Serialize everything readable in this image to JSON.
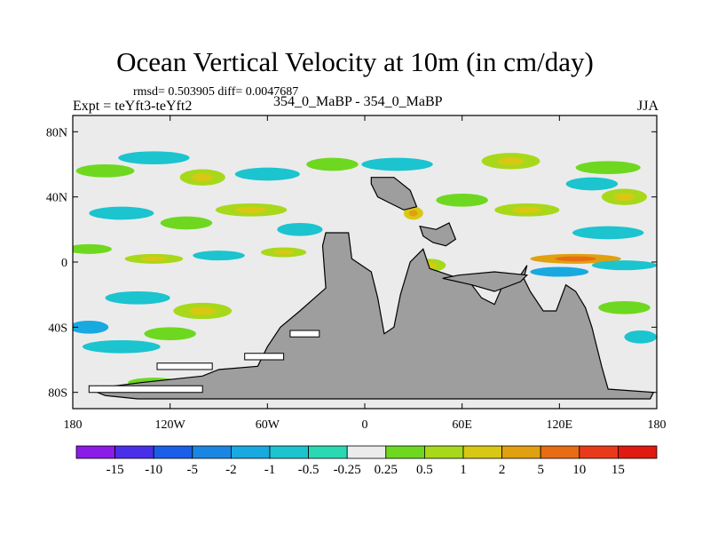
{
  "chart_data": {
    "type": "heatmap",
    "title": "Ocean Vertical Velocity at 10m (in cm/day)",
    "stats": "rmsd= 0.503905 diff= 0.0047687",
    "left_label": "Expt = teYft3-teYft2",
    "center_label": "354_0_MaBP - 354_0_MaBP",
    "right_label": "JJA",
    "x_ticks": [
      {
        "value": -180,
        "label": "180"
      },
      {
        "value": -120,
        "label": "120W"
      },
      {
        "value": -60,
        "label": "60W"
      },
      {
        "value": 0,
        "label": "0"
      },
      {
        "value": 60,
        "label": "60E"
      },
      {
        "value": 120,
        "label": "120E"
      },
      {
        "value": 180,
        "label": "180"
      }
    ],
    "y_ticks": [
      {
        "value": 80,
        "label": "80N"
      },
      {
        "value": 40,
        "label": "40N"
      },
      {
        "value": 0,
        "label": "0"
      },
      {
        "value": -40,
        "label": "40S"
      },
      {
        "value": -80,
        "label": "80S"
      }
    ],
    "xlim": [
      -180,
      180
    ],
    "ylim": [
      -90,
      90
    ],
    "colorbar": {
      "labels": [
        "-15",
        "-10",
        "-5",
        "-2",
        "-1",
        "-0.5",
        "-0.25",
        "0.25",
        "0.5",
        "1",
        "2",
        "5",
        "10",
        "15"
      ],
      "colors": [
        "#8b1ce8",
        "#4a2fe8",
        "#1a5fe8",
        "#1a86e3",
        "#18a9e0",
        "#1bc4cf",
        "#2ad9b4",
        "#ebebeb",
        "#6ed820",
        "#a8d81a",
        "#d8c814",
        "#e0a010",
        "#e86c14",
        "#e83a1a",
        "#e01a10"
      ]
    },
    "land_color": "#9e9e9e",
    "ocean_background": "#ebebeb",
    "land": [
      [
        [
          -138,
          -74
        ],
        [
          -100,
          -70
        ],
        [
          -90,
          -66
        ],
        [
          -66,
          -64
        ],
        [
          -60,
          -52
        ],
        [
          -52,
          -40
        ],
        [
          -40,
          -30
        ],
        [
          -24,
          -16
        ],
        [
          -26,
          10
        ],
        [
          -24,
          18
        ],
        [
          -10,
          18
        ],
        [
          -8,
          2
        ],
        [
          4,
          -6
        ],
        [
          8,
          -22
        ],
        [
          12,
          -44
        ],
        [
          18,
          -40
        ],
        [
          22,
          -20
        ],
        [
          28,
          0
        ],
        [
          36,
          8
        ],
        [
          40,
          -4
        ],
        [
          58,
          -10
        ],
        [
          66,
          -14
        ],
        [
          72,
          -22
        ],
        [
          80,
          -26
        ],
        [
          86,
          -12
        ],
        [
          96,
          -8
        ],
        [
          100,
          -2
        ],
        [
          98,
          -10
        ],
        [
          102,
          -18
        ],
        [
          110,
          -30
        ],
        [
          118,
          -30
        ],
        [
          124,
          -14
        ],
        [
          130,
          -18
        ],
        [
          136,
          -28
        ],
        [
          140,
          -40
        ],
        [
          146,
          -64
        ],
        [
          150,
          -78
        ],
        [
          178,
          -80
        ],
        [
          176,
          -84
        ],
        [
          -100,
          -84
        ],
        [
          -140,
          -84
        ],
        [
          -160,
          -82
        ],
        [
          -170,
          -78
        ],
        [
          -138,
          -74
        ]
      ],
      [
        [
          4,
          52
        ],
        [
          18,
          52
        ],
        [
          28,
          44
        ],
        [
          32,
          34
        ],
        [
          24,
          32
        ],
        [
          16,
          36
        ],
        [
          8,
          40
        ],
        [
          4,
          48
        ],
        [
          4,
          52
        ]
      ],
      [
        [
          34,
          22
        ],
        [
          44,
          20
        ],
        [
          52,
          24
        ],
        [
          56,
          14
        ],
        [
          50,
          10
        ],
        [
          42,
          12
        ],
        [
          36,
          16
        ],
        [
          34,
          22
        ]
      ],
      [
        [
          48,
          -10
        ],
        [
          66,
          -14
        ],
        [
          80,
          -18
        ],
        [
          96,
          -12
        ],
        [
          100,
          -8
        ],
        [
          80,
          -6
        ],
        [
          58,
          -8
        ],
        [
          48,
          -10
        ]
      ]
    ],
    "ocean_blocks": [
      [
        [
          -128,
          -66
        ],
        [
          -94,
          -66
        ],
        [
          -94,
          -62
        ],
        [
          -128,
          -62
        ],
        [
          -128,
          -66
        ]
      ],
      [
        [
          -46,
          -46
        ],
        [
          -28,
          -46
        ],
        [
          -28,
          -42
        ],
        [
          -46,
          -42
        ],
        [
          -46,
          -46
        ]
      ],
      [
        [
          -74,
          -60
        ],
        [
          -50,
          -60
        ],
        [
          -50,
          -56
        ],
        [
          -74,
          -56
        ],
        [
          -74,
          -60
        ]
      ],
      [
        [
          -170,
          -80
        ],
        [
          -100,
          -80
        ],
        [
          -100,
          -76
        ],
        [
          -170,
          -76
        ],
        [
          -170,
          -80
        ]
      ]
    ],
    "anomalies": [
      {
        "lon": -160,
        "lat": 56,
        "rx": 18,
        "ry": 4,
        "level": 8
      },
      {
        "lon": -130,
        "lat": 64,
        "rx": 22,
        "ry": 4,
        "level": 5
      },
      {
        "lon": -100,
        "lat": 52,
        "rx": 14,
        "ry": 5,
        "level": 9
      },
      {
        "lon": -60,
        "lat": 54,
        "rx": 20,
        "ry": 4,
        "level": 5
      },
      {
        "lon": -20,
        "lat": 60,
        "rx": 16,
        "ry": 4,
        "level": 8
      },
      {
        "lon": 20,
        "lat": 60,
        "rx": 22,
        "ry": 4,
        "level": 5
      },
      {
        "lon": 90,
        "lat": 62,
        "rx": 18,
        "ry": 5,
        "level": 9
      },
      {
        "lon": 150,
        "lat": 58,
        "rx": 20,
        "ry": 4,
        "level": 8
      },
      {
        "lon": 140,
        "lat": 48,
        "rx": 16,
        "ry": 4,
        "level": 5
      },
      {
        "lon": 160,
        "lat": 40,
        "rx": 14,
        "ry": 5,
        "level": 9
      },
      {
        "lon": -150,
        "lat": 30,
        "rx": 20,
        "ry": 4,
        "level": 5
      },
      {
        "lon": -110,
        "lat": 24,
        "rx": 16,
        "ry": 4,
        "level": 8
      },
      {
        "lon": -70,
        "lat": 32,
        "rx": 22,
        "ry": 4,
        "level": 9
      },
      {
        "lon": -40,
        "lat": 20,
        "rx": 14,
        "ry": 4,
        "level": 5
      },
      {
        "lon": 60,
        "lat": 38,
        "rx": 16,
        "ry": 4,
        "level": 8
      },
      {
        "lon": 100,
        "lat": 32,
        "rx": 20,
        "ry": 4,
        "level": 9
      },
      {
        "lon": 150,
        "lat": 18,
        "rx": 22,
        "ry": 4,
        "level": 5
      },
      {
        "lon": -170,
        "lat": 8,
        "rx": 14,
        "ry": 3,
        "level": 8
      },
      {
        "lon": -130,
        "lat": 2,
        "rx": 18,
        "ry": 3,
        "level": 9
      },
      {
        "lon": -90,
        "lat": 4,
        "rx": 16,
        "ry": 3,
        "level": 5
      },
      {
        "lon": -50,
        "lat": 6,
        "rx": 14,
        "ry": 3,
        "level": 9
      },
      {
        "lon": 130,
        "lat": 2,
        "rx": 28,
        "ry": 3,
        "level": 11
      },
      {
        "lon": 160,
        "lat": -2,
        "rx": 20,
        "ry": 3,
        "level": 5
      },
      {
        "lon": 120,
        "lat": -6,
        "rx": 18,
        "ry": 3,
        "level": 4
      },
      {
        "lon": 30,
        "lat": 30,
        "rx": 6,
        "ry": 4,
        "level": 10
      },
      {
        "lon": 40,
        "lat": -2,
        "rx": 10,
        "ry": 4,
        "level": 9
      },
      {
        "lon": -140,
        "lat": -22,
        "rx": 20,
        "ry": 4,
        "level": 5
      },
      {
        "lon": -100,
        "lat": -30,
        "rx": 18,
        "ry": 5,
        "level": 9
      },
      {
        "lon": -170,
        "lat": -40,
        "rx": 12,
        "ry": 4,
        "level": 4
      },
      {
        "lon": -150,
        "lat": -52,
        "rx": 24,
        "ry": 4,
        "level": 5
      },
      {
        "lon": -120,
        "lat": -44,
        "rx": 16,
        "ry": 4,
        "level": 8
      },
      {
        "lon": 60,
        "lat": -30,
        "rx": 10,
        "ry": 4,
        "level": 9
      },
      {
        "lon": 160,
        "lat": -28,
        "rx": 16,
        "ry": 4,
        "level": 8
      },
      {
        "lon": 170,
        "lat": -46,
        "rx": 10,
        "ry": 4,
        "level": 5
      },
      {
        "lon": -130,
        "lat": -74,
        "rx": 16,
        "ry": 3,
        "level": 8
      },
      {
        "lon": -90,
        "lat": -72,
        "rx": 12,
        "ry": 3,
        "level": 4
      }
    ]
  }
}
